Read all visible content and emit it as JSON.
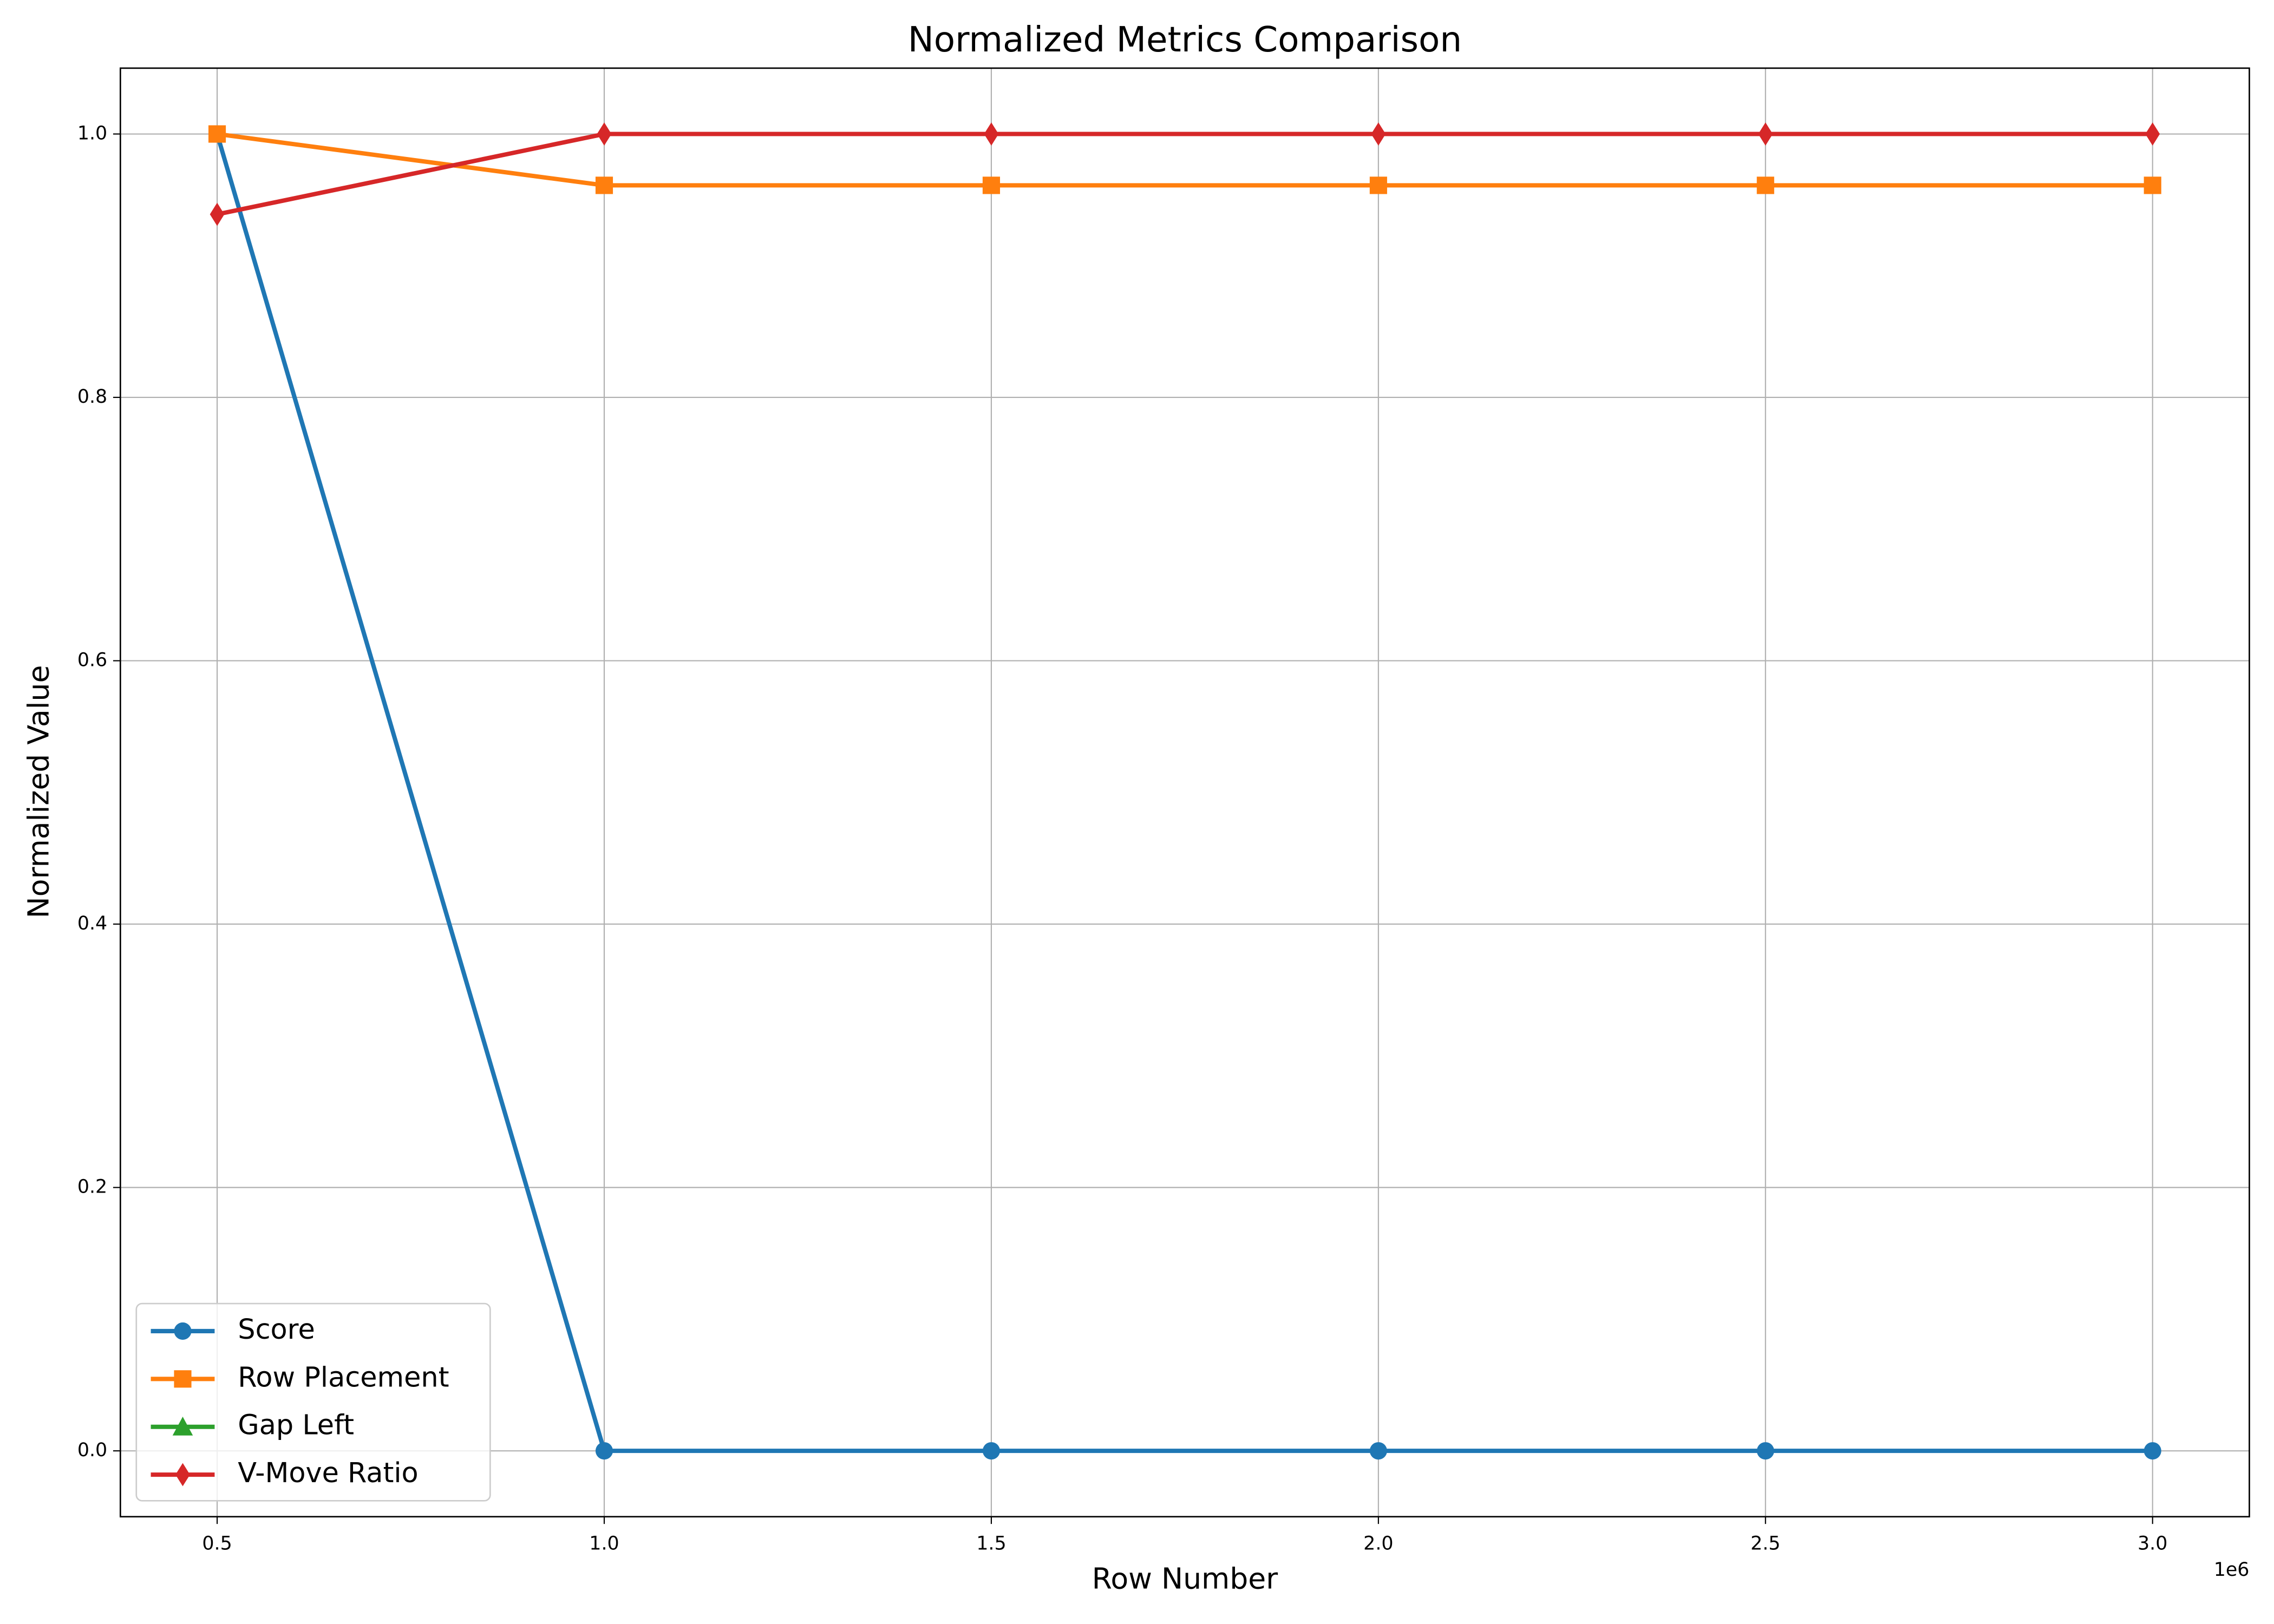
{
  "chart_data": {
    "type": "line",
    "title": "Normalized Metrics Comparison",
    "xlabel": "Row Number",
    "ylabel": "Normalized Value",
    "x_offset_label": "1e6",
    "x": [
      500000,
      1000000,
      1500000,
      2000000,
      2500000,
      3000000
    ],
    "series": [
      {
        "name": "Score",
        "color": "#1f77b4",
        "marker": "circle",
        "values": [
          1.0,
          0.0,
          0.0,
          0.0,
          0.0,
          0.0
        ]
      },
      {
        "name": "Row Placement",
        "color": "#ff7f0e",
        "marker": "square",
        "values": [
          1.0,
          0.961,
          0.961,
          0.961,
          0.961,
          0.961
        ]
      },
      {
        "name": "Gap Left",
        "color": "#2ca02c",
        "marker": "triangle",
        "values": [
          null,
          null,
          null,
          null,
          null,
          null
        ]
      },
      {
        "name": "V-Move Ratio",
        "color": "#d62728",
        "marker": "diamond",
        "values": [
          0.939,
          1.0,
          1.0,
          1.0,
          1.0,
          1.0
        ]
      }
    ],
    "xlim": [
      375000,
      3125000
    ],
    "ylim": [
      -0.05,
      1.05
    ],
    "xticks": [
      {
        "value": 500000,
        "label": "0.5"
      },
      {
        "value": 1000000,
        "label": "1.0"
      },
      {
        "value": 1500000,
        "label": "1.5"
      },
      {
        "value": 2000000,
        "label": "2.0"
      },
      {
        "value": 2500000,
        "label": "2.5"
      },
      {
        "value": 3000000,
        "label": "3.0"
      }
    ],
    "yticks": [
      {
        "value": 0,
        "label": "0.0"
      },
      {
        "value": 0.2,
        "label": "0.2"
      },
      {
        "value": 0.4,
        "label": "0.4"
      },
      {
        "value": 0.6,
        "label": "0.6"
      },
      {
        "value": 0.8,
        "label": "0.8"
      },
      {
        "value": 1.0,
        "label": "1.0"
      }
    ],
    "grid": true,
    "legend": "lower left"
  }
}
